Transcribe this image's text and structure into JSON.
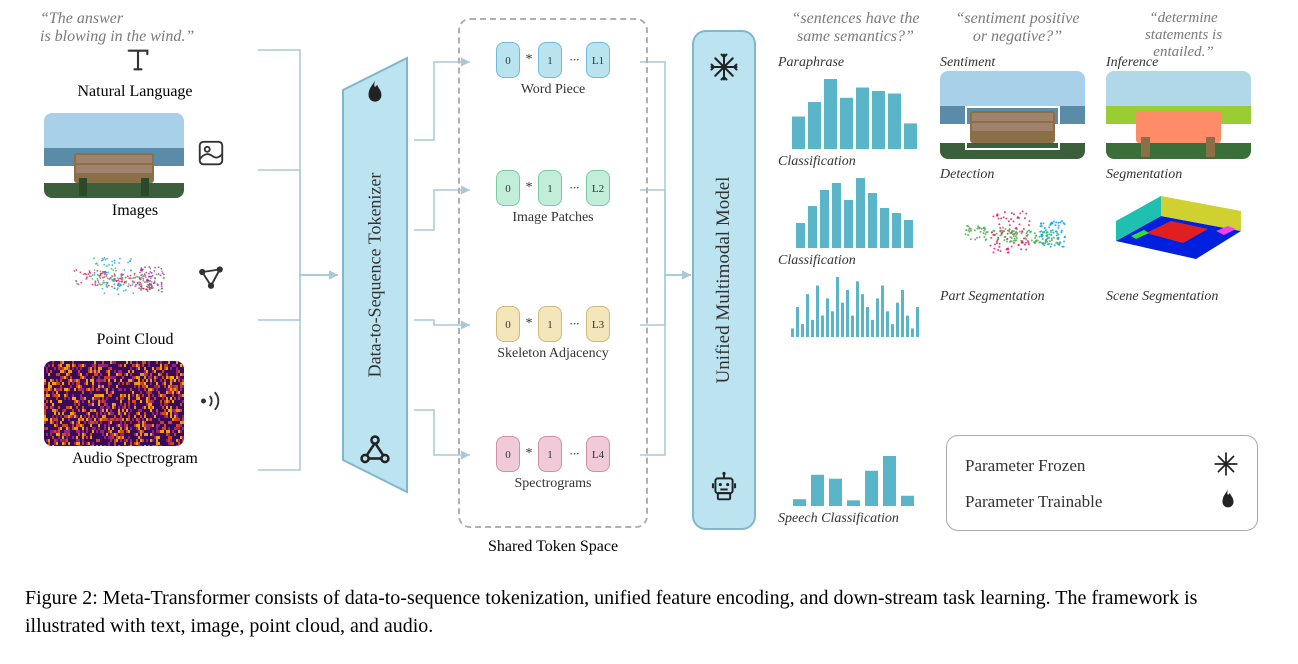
{
  "inputs": {
    "text_quote": "“The answer\nis blowing in the wind.”",
    "text_label": "Natural Language",
    "image_label": "Images",
    "pointcloud_label": "Point Cloud",
    "audio_label": "Audio Spectrogram"
  },
  "tokenizer": {
    "label": "Data-to-Sequence Tokenizer"
  },
  "token_space": {
    "rows": [
      {
        "label": "Word Piece",
        "tokens": [
          "0",
          "*",
          "1",
          "...",
          "L1"
        ],
        "fill": "#b9e3ef",
        "border": "#6fbcd6"
      },
      {
        "label": "Image Patches",
        "tokens": [
          "0",
          "*",
          "1",
          "...",
          "L2"
        ],
        "fill": "#c2edd9",
        "border": "#7ec9a5"
      },
      {
        "label": "Skeleton Adjacency",
        "tokens": [
          "0",
          "*",
          "1",
          "...",
          "L3"
        ],
        "fill": "#f2e6ba",
        "border": "#cfb877"
      },
      {
        "label": "Spectrograms",
        "tokens": [
          "0",
          "*",
          "1",
          "...",
          "L4"
        ],
        "fill": "#f0cad8",
        "border": "#d28fa8"
      }
    ],
    "shared_label": "Shared Token Space"
  },
  "unified_model": {
    "label": "Unified Multimodal Model"
  },
  "tasks": {
    "quotes": [
      "“sentences have the\nsame semantics?”",
      "“sentiment positive\nor negative?”",
      "“determine\nstatements is\nentailed.”"
    ],
    "row1": [
      "Paraphrase",
      "Sentiment",
      "Inference"
    ],
    "row2": [
      "Classification",
      "Detection",
      "Segmentation"
    ],
    "row3": [
      "Classification",
      "Part Segmentation",
      "Scene Segmentation"
    ],
    "row4": [
      "Speech Classification"
    ]
  },
  "legend": {
    "frozen": "Parameter Frozen",
    "trainable": "Parameter Trainable"
  },
  "caption": {
    "prefix": "Figure 2: ",
    "text": "Meta-Transformer consists of data-to-sequence tokenization, unified feature encoding, and down-stream task learning. The framework is illustrated with text, image, point cloud, and audio."
  },
  "colors": {
    "teal_block": "#bce4f0",
    "teal_border": "#7fb8cc",
    "teal_bar": "#5bb5c9",
    "connector": "#a8c9d9",
    "quote_gray": "#7a7a7a",
    "dash_gray": "#b0b0b0"
  },
  "charts": {
    "paraphrase_bars": [
      38,
      55,
      82,
      60,
      72,
      68,
      65,
      30
    ],
    "classification_img_bars": [
      25,
      42,
      58,
      65,
      48,
      70,
      55,
      40,
      35,
      28
    ],
    "classification_pc_spikes": [
      10,
      35,
      15,
      50,
      20,
      60,
      25,
      45,
      30,
      70,
      40,
      55,
      25,
      65,
      50,
      35,
      20,
      45,
      60,
      30,
      15,
      40,
      55,
      25,
      10,
      35
    ],
    "speech_bars": [
      12,
      55,
      48,
      10,
      62,
      88,
      18
    ]
  },
  "thumbnails": {
    "bench_colors": [
      "#87ceeb",
      "#4682b4",
      "#8b6f47",
      "#a0826d",
      "#2f4f2f"
    ],
    "seg_colors": [
      "#87ceeb",
      "#ff8c69",
      "#8b6f47",
      "#9acd32",
      "#2f4f2f"
    ],
    "plane_colors": [
      "#e91e63",
      "#03a9f4",
      "#9c27b0",
      "#4caf50"
    ],
    "plane_part_colors": [
      "#e91e63",
      "#4caf50",
      "#03a9f4"
    ],
    "scene_colors": [
      "#0000ff",
      "#ff0000",
      "#00ff00",
      "#ffff00",
      "#ff00ff"
    ],
    "spectrogram_colors": [
      "#4b0082",
      "#8b008b",
      "#ff4500",
      "#ff8c00",
      "#ffff00"
    ]
  }
}
